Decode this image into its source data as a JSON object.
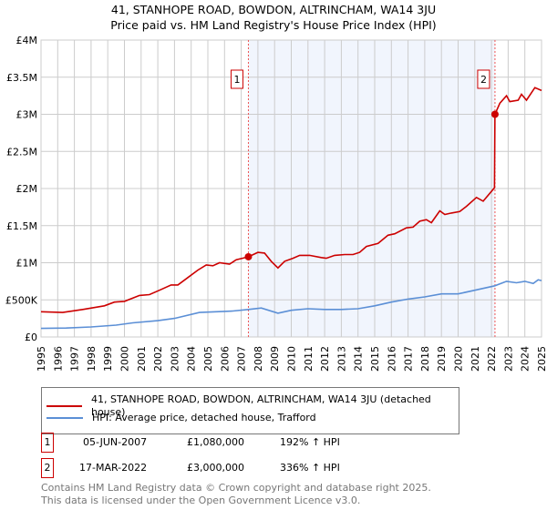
{
  "title_line1": "41, STANHOPE ROAD, BOWDON, ALTRINCHAM, WA14 3JU",
  "title_line2": "Price paid vs. HM Land Registry's House Price Index (HPI)",
  "chart_data": {
    "type": "line",
    "title": "41, STANHOPE ROAD, BOWDON, ALTRINCHAM, WA14 3JU - Price paid vs. HM Land Registry's House Price Index (HPI)",
    "xlabel": "",
    "ylabel": "",
    "xlim": [
      1995,
      2025
    ],
    "ylim": [
      0,
      4000000
    ],
    "x_ticks": [
      "1995",
      "1996",
      "1997",
      "1998",
      "1999",
      "2000",
      "2001",
      "2002",
      "2003",
      "2004",
      "2005",
      "2006",
      "2007",
      "2008",
      "2009",
      "2010",
      "2011",
      "2012",
      "2013",
      "2014",
      "2015",
      "2016",
      "2017",
      "2018",
      "2019",
      "2020",
      "2021",
      "2022",
      "2023",
      "2024",
      "2025"
    ],
    "y_ticks": [
      {
        "v": 0,
        "label": "£0"
      },
      {
        "v": 500000,
        "label": "£500K"
      },
      {
        "v": 1000000,
        "label": "£1M"
      },
      {
        "v": 1500000,
        "label": "£1.5M"
      },
      {
        "v": 2000000,
        "label": "£2M"
      },
      {
        "v": 2500000,
        "label": "£2.5M"
      },
      {
        "v": 3000000,
        "label": "£3M"
      },
      {
        "v": 3500000,
        "label": "£3.5M"
      },
      {
        "v": 4000000,
        "label": "£4M"
      }
    ],
    "grid": true,
    "shaded_range": [
      2007.43,
      2022.21
    ],
    "series": [
      {
        "name": "41, STANHOPE ROAD, BOWDON, ALTRINCHAM, WA14 3JU (detached house)",
        "color": "#cc0000",
        "x": [
          1995,
          1996.3,
          1997.5,
          1998.8,
          1999.4,
          2000,
          2000.9,
          2001.5,
          2002.1,
          2002.8,
          2003.2,
          2003.8,
          2004.4,
          2004.9,
          2005.3,
          2005.7,
          2006.3,
          2006.7,
          2007.43,
          2008.0,
          2008.4,
          2008.8,
          2009.2,
          2009.6,
          2010.1,
          2010.5,
          2011.1,
          2011.8,
          2012.1,
          2012.6,
          2013.2,
          2013.7,
          2014.1,
          2014.5,
          2015.2,
          2015.8,
          2016.2,
          2016.9,
          2017.3,
          2017.7,
          2018.1,
          2018.4,
          2018.9,
          2019.2,
          2019.6,
          2020.1,
          2020.5,
          2021.1,
          2021.5,
          2022.18,
          2022.21,
          2022.5,
          2022.9,
          2023.1,
          2023.6,
          2023.8,
          2024.1,
          2024.6,
          2025
        ],
        "y": [
          340000,
          330000,
          370000,
          420000,
          470000,
          480000,
          560000,
          570000,
          630000,
          700000,
          700000,
          800000,
          900000,
          970000,
          960000,
          1000000,
          980000,
          1040000,
          1080000,
          1140000,
          1130000,
          1020000,
          930000,
          1020000,
          1060000,
          1100000,
          1100000,
          1070000,
          1060000,
          1100000,
          1110000,
          1110000,
          1140000,
          1220000,
          1260000,
          1370000,
          1390000,
          1470000,
          1480000,
          1560000,
          1580000,
          1540000,
          1700000,
          1650000,
          1670000,
          1690000,
          1760000,
          1880000,
          1830000,
          2010000,
          3000000,
          3150000,
          3250000,
          3170000,
          3190000,
          3270000,
          3190000,
          3360000,
          3320000
        ]
      },
      {
        "name": "HPI: Average price, detached house, Trafford",
        "color": "#5b8fd6",
        "x": [
          1995,
          1996.5,
          1998,
          1999.5,
          2000.5,
          2002,
          2003,
          2004.5,
          2005.5,
          2006.5,
          2007.43,
          2008.2,
          2009.2,
          2010,
          2011,
          2012,
          2013,
          2014,
          2015,
          2016,
          2017,
          2018,
          2019,
          2020,
          2021,
          2022.2,
          2022.9,
          2023.5,
          2024,
          2024.5,
          2024.8,
          2025
        ],
        "y": [
          115000,
          120000,
          135000,
          160000,
          190000,
          220000,
          250000,
          330000,
          340000,
          350000,
          370000,
          390000,
          320000,
          360000,
          380000,
          370000,
          370000,
          380000,
          420000,
          470000,
          510000,
          540000,
          580000,
          580000,
          630000,
          690000,
          750000,
          730000,
          750000,
          720000,
          770000,
          760000
        ]
      }
    ],
    "sales": [
      {
        "id": "1",
        "x": 2007.43,
        "y": 1080000
      },
      {
        "id": "2",
        "x": 2022.21,
        "y": 3000000
      }
    ]
  },
  "legend": [
    {
      "label": "41, STANHOPE ROAD, BOWDON, ALTRINCHAM, WA14 3JU (detached house)",
      "color": "#cc0000"
    },
    {
      "label": "HPI: Average price, detached house, Trafford",
      "color": "#5b8fd6"
    }
  ],
  "transactions": [
    {
      "id": "1",
      "date": "05-JUN-2007",
      "price": "£1,080,000",
      "hpi": "192% ↑ HPI"
    },
    {
      "id": "2",
      "date": "17-MAR-2022",
      "price": "£3,000,000",
      "hpi": "336% ↑ HPI"
    }
  ],
  "footer": {
    "line1": "Contains HM Land Registry data © Crown copyright and database right 2025.",
    "line2": "This data is licensed under the Open Government Licence v3.0."
  }
}
